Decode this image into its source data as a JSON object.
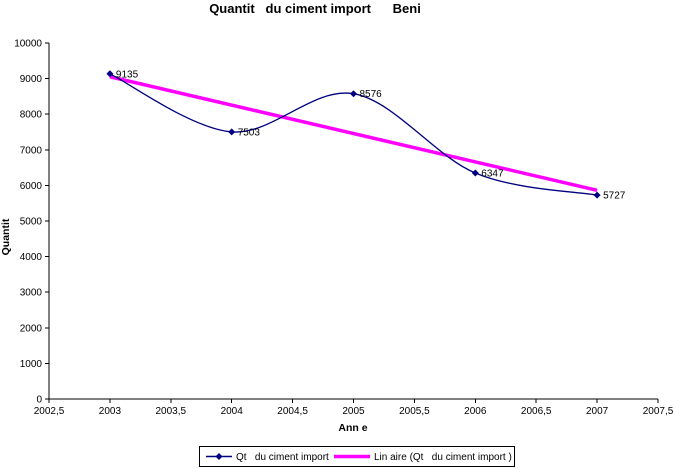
{
  "chart_data": {
    "type": "line",
    "title": "Quantit   du ciment import      Beni",
    "xlabel": "Ann e",
    "ylabel": "Quantit",
    "x": [
      2003,
      2004,
      2005,
      2006,
      2007
    ],
    "series": [
      {
        "name": "Qt   du ciment import",
        "values": [
          9135,
          7503,
          8576,
          6347,
          5727
        ],
        "color": "#000080",
        "marker": "diamond",
        "smooth": true
      },
      {
        "name": "Lin aire (Qt   du ciment import )",
        "kind": "linear-trendline",
        "color": "#FF00FF"
      }
    ],
    "data_labels": [
      "9135",
      "7503",
      "8576",
      "6347",
      "5727"
    ],
    "xlim": [
      2002.5,
      2007.5
    ],
    "ylim": [
      0,
      10000
    ],
    "x_tick_values": [
      2002.5,
      2003,
      2003.5,
      2004,
      2004.5,
      2005,
      2005.5,
      2006,
      2006.5,
      2007,
      2007.5
    ],
    "x_tick_labels": [
      "2002,5",
      "2003",
      "2003,5",
      "2004",
      "2004,5",
      "2005",
      "2005,5",
      "2006",
      "2006,5",
      "2007",
      "2007,5"
    ],
    "y_tick_values": [
      0,
      1000,
      2000,
      3000,
      4000,
      5000,
      6000,
      7000,
      8000,
      9000,
      10000
    ],
    "y_tick_labels": [
      "0",
      "1000",
      "2000",
      "3000",
      "4000",
      "5000",
      "6000",
      "7000",
      "8000",
      "9000",
      "10000"
    ],
    "grid": false,
    "legend_position": "bottom"
  },
  "colors": {
    "series_line": "#000080",
    "trendline": "#FF00FF",
    "data_label_text": "#333333",
    "axis": "#000000",
    "background": "#FFFFFF"
  }
}
